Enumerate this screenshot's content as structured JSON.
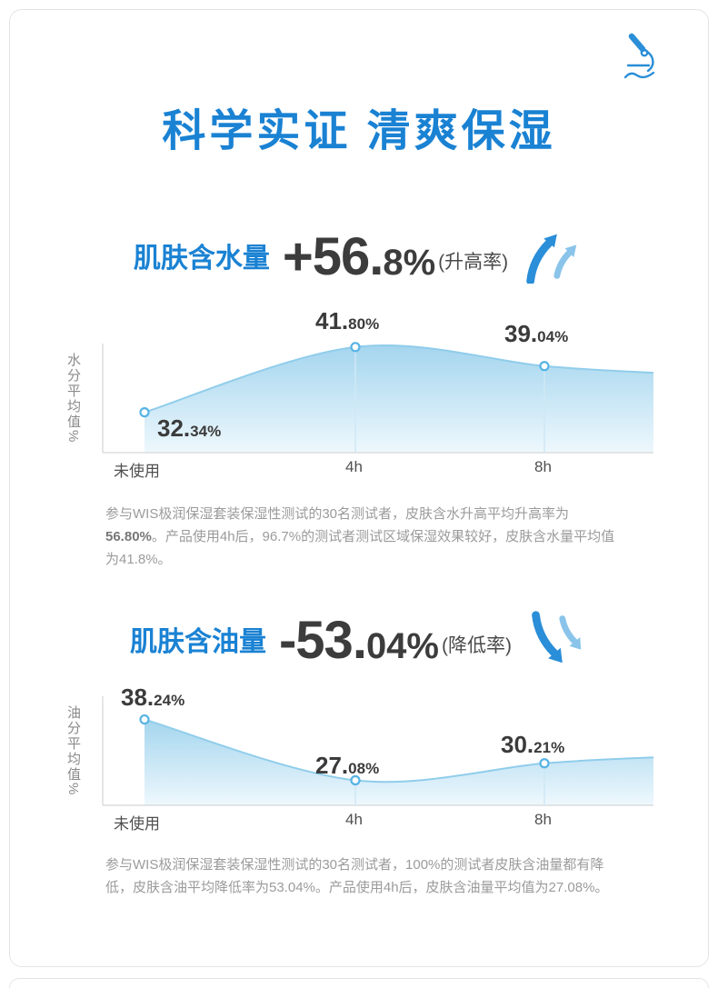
{
  "page": {
    "title": "科学实证 清爽保湿"
  },
  "colors": {
    "accent_blue": "#1a82d3",
    "number_dark": "#3c3c3c",
    "arrow_dark": "#2a8ed8",
    "arrow_light": "#8ac4ea"
  },
  "sections": [
    {
      "label": "肌肤含水量",
      "headline_main": "+56.",
      "headline_sub": "8%",
      "rate_note": "(升高率)",
      "description_pre": "参与WIS极润保湿套装保湿性测试的30名测试者，皮肤含水升高平均升高率为",
      "description_bold": "56.80%",
      "description_post": "。产品使用4h后，96.7%的测试者测试区域保湿效果较好，皮肤含水量平均值为41.8%。"
    },
    {
      "label": "肌肤含油量",
      "headline_main": "-53.",
      "headline_sub": "04%",
      "rate_note": "(降低率)",
      "description_pre": "参与WIS极润保湿套装保湿性测试的30名测试者，100%的测试者皮肤含油量都有降低，皮肤含油平均降低率为53.04%。产品使用4h后，皮肤含油量平均值为27.08%。",
      "description_bold": "",
      "description_post": ""
    }
  ],
  "chart_data": [
    {
      "type": "area",
      "title": "肌肤含水量",
      "headline": "+56.8%",
      "headline_note": "升高率",
      "ylabel": "水分平均值%",
      "categories": [
        "未使用",
        "4h",
        "8h"
      ],
      "values": [
        32.34,
        41.8,
        39.04
      ],
      "points": [
        {
          "label": "未使用",
          "value": 32.34,
          "text_main": "32.",
          "text_sub": "34%"
        },
        {
          "label": "4h",
          "value": 41.8,
          "text_main": "41.",
          "text_sub": "80%"
        },
        {
          "label": "8h",
          "value": 39.04,
          "text_main": "39.",
          "text_sub": "04%"
        }
      ],
      "ylim": [
        26.5,
        42.3
      ],
      "grid": false,
      "colors": {
        "fill_top": "#a4d5ee",
        "fill_bottom": "#eef8fd",
        "line": "#90cdeb",
        "point": "#56b3e4"
      }
    },
    {
      "type": "area",
      "title": "肌肤含油量",
      "headline": "-53.04%",
      "headline_note": "降低率",
      "ylabel": "油分平均值%",
      "categories": [
        "未使用",
        "4h",
        "8h"
      ],
      "values": [
        38.24,
        27.08,
        30.21
      ],
      "points": [
        {
          "label": "未使用",
          "value": 38.24,
          "text_main": "38.",
          "text_sub": "24%"
        },
        {
          "label": "4h",
          "value": 27.08,
          "text_main": "27.",
          "text_sub": "08%"
        },
        {
          "label": "8h",
          "value": 30.21,
          "text_main": "30.",
          "text_sub": "21%"
        }
      ],
      "ylim": [
        22.5,
        42.5
      ],
      "grid": false,
      "colors": {
        "fill_top": "#a4d5ee",
        "fill_bottom": "#eef8fd",
        "line": "#90cdeb",
        "point": "#56b3e4"
      }
    }
  ]
}
